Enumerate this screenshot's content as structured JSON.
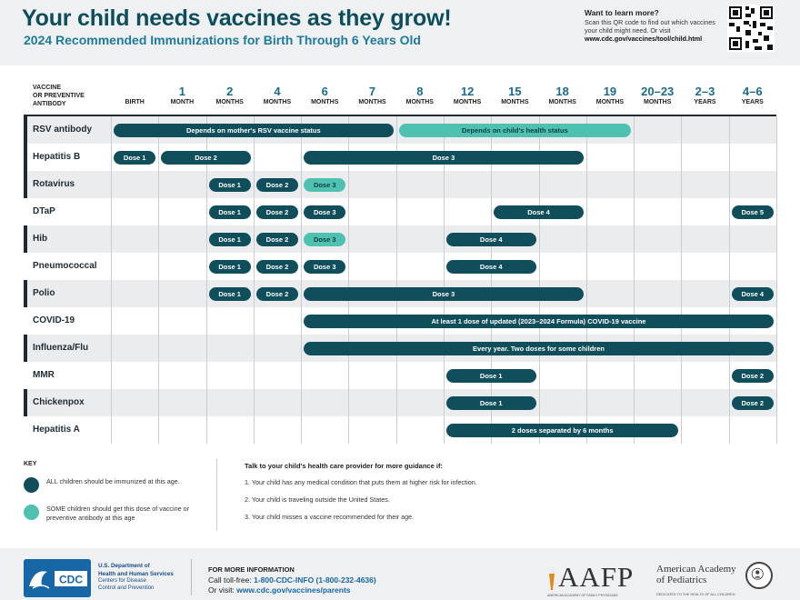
{
  "header": {
    "title": "Your child needs vaccines as they grow!",
    "subtitle": "2024 Recommended Immunizations for Birth Through 6 Years Old",
    "learn_title": "Want to learn more?",
    "learn_text": "Scan this QR code to find out which vaccines your child might need. Or visit",
    "learn_url": "www.cdc.gov/vaccines/tool/child.html"
  },
  "table": {
    "vaccine_header": [
      "VACCINE",
      "OR PREVENTIVE",
      "ANTIBODY"
    ],
    "columns": [
      {
        "num": "",
        "unit": "BIRTH"
      },
      {
        "num": "1",
        "unit": "MONTH"
      },
      {
        "num": "2",
        "unit": "MONTHS"
      },
      {
        "num": "4",
        "unit": "MONTHS"
      },
      {
        "num": "6",
        "unit": "MONTHS"
      },
      {
        "num": "7",
        "unit": "MONTHS"
      },
      {
        "num": "8",
        "unit": "MONTHS"
      },
      {
        "num": "12",
        "unit": "MONTHS"
      },
      {
        "num": "15",
        "unit": "MONTHS"
      },
      {
        "num": "18",
        "unit": "MONTHS"
      },
      {
        "num": "19",
        "unit": "MONTHS"
      },
      {
        "num": "20–23",
        "unit": "MONTHS"
      },
      {
        "num": "2–3",
        "unit": "YEARS"
      },
      {
        "num": "4–6",
        "unit": "YEARS"
      }
    ],
    "rows": [
      {
        "name": "RSV antibody",
        "mark": true,
        "bars": [
          {
            "start": 0,
            "end": 6,
            "label": "Depends on mother's RSV vaccine status",
            "type": "all"
          },
          {
            "start": 6,
            "end": 11,
            "label": "Depends on child's health status",
            "type": "some"
          }
        ]
      },
      {
        "name": "Hepatitis B",
        "mark": true,
        "bars": [
          {
            "start": 0,
            "end": 1,
            "label": "Dose 1",
            "type": "all"
          },
          {
            "start": 1,
            "end": 3,
            "label": "Dose 2",
            "type": "all"
          },
          {
            "start": 4,
            "end": 10,
            "label": "Dose 3",
            "type": "all"
          }
        ]
      },
      {
        "name": "Rotavirus",
        "mark": true,
        "bars": [
          {
            "start": 2,
            "end": 3,
            "label": "Dose 1",
            "type": "all"
          },
          {
            "start": 3,
            "end": 4,
            "label": "Dose 2",
            "type": "all"
          },
          {
            "start": 4,
            "end": 5,
            "label": "Dose 3",
            "type": "some"
          }
        ]
      },
      {
        "name": "DTaP",
        "mark": false,
        "bars": [
          {
            "start": 2,
            "end": 3,
            "label": "Dose 1",
            "type": "all"
          },
          {
            "start": 3,
            "end": 4,
            "label": "Dose 2",
            "type": "all"
          },
          {
            "start": 4,
            "end": 5,
            "label": "Dose 3",
            "type": "all"
          },
          {
            "start": 8,
            "end": 10,
            "label": "Dose 4",
            "type": "all"
          },
          {
            "start": 13,
            "end": 14,
            "label": "Dose 5",
            "type": "all"
          }
        ]
      },
      {
        "name": "Hib",
        "mark": true,
        "bars": [
          {
            "start": 2,
            "end": 3,
            "label": "Dose 1",
            "type": "all"
          },
          {
            "start": 3,
            "end": 4,
            "label": "Dose 2",
            "type": "all"
          },
          {
            "start": 4,
            "end": 5,
            "label": "Dose 3",
            "type": "some"
          },
          {
            "start": 7,
            "end": 9,
            "label": "Dose 4",
            "type": "all"
          }
        ]
      },
      {
        "name": "Pneumococcal",
        "mark": false,
        "bars": [
          {
            "start": 2,
            "end": 3,
            "label": "Dose 1",
            "type": "all"
          },
          {
            "start": 3,
            "end": 4,
            "label": "Dose 2",
            "type": "all"
          },
          {
            "start": 4,
            "end": 5,
            "label": "Dose 3",
            "type": "all"
          },
          {
            "start": 7,
            "end": 9,
            "label": "Dose 4",
            "type": "all"
          }
        ]
      },
      {
        "name": "Polio",
        "mark": true,
        "bars": [
          {
            "start": 2,
            "end": 3,
            "label": "Dose 1",
            "type": "all"
          },
          {
            "start": 3,
            "end": 4,
            "label": "Dose 2",
            "type": "all"
          },
          {
            "start": 4,
            "end": 10,
            "label": "Dose 3",
            "type": "all"
          },
          {
            "start": 13,
            "end": 14,
            "label": "Dose 4",
            "type": "all"
          }
        ]
      },
      {
        "name": "COVID-19",
        "mark": false,
        "bars": [
          {
            "start": 4,
            "end": 14,
            "label": "At least 1 dose of updated (2023–2024 Formula) COVID-19 vaccine",
            "type": "all"
          }
        ]
      },
      {
        "name": "Influenza/Flu",
        "mark": true,
        "bars": [
          {
            "start": 4,
            "end": 14,
            "label": "Every year. Two doses for some children",
            "type": "all"
          }
        ]
      },
      {
        "name": "MMR",
        "mark": false,
        "bars": [
          {
            "start": 7,
            "end": 9,
            "label": "Dose 1",
            "type": "all"
          },
          {
            "start": 13,
            "end": 14,
            "label": "Dose 2",
            "type": "all"
          }
        ]
      },
      {
        "name": "Chickenpox",
        "mark": true,
        "bars": [
          {
            "start": 7,
            "end": 9,
            "label": "Dose 1",
            "type": "all"
          },
          {
            "start": 13,
            "end": 14,
            "label": "Dose 2",
            "type": "all"
          }
        ]
      },
      {
        "name": "Hepatitis A",
        "mark": false,
        "bars": [
          {
            "start": 7,
            "end": 12,
            "label": "2 doses separated by 6 months",
            "type": "all"
          }
        ]
      }
    ]
  },
  "key": {
    "title": "KEY",
    "all_text": "ALL children should be immunized at this age.",
    "some_text": "SOME children should get this dose of vaccine or preventive antibody at this age"
  },
  "talk": {
    "title": "Talk to your child's health care provider for more guidance if:",
    "items": [
      "1. Your child has any medical condition that puts them at higher risk for infection.",
      "2. Your child is traveling outside the United States.",
      "3. Your child misses a vaccine recommended for their age."
    ]
  },
  "footer": {
    "cdc": "CDC",
    "hhs_line1": "U.S. Department of",
    "hhs_line2": "Health and Human Services",
    "hhs_line3": "Centers for Disease",
    "hhs_line4": "Control and Prevention",
    "more_title": "FOR MORE INFORMATION",
    "call_prefix": "Call toll-free: ",
    "call_number": "1-800-CDC-INFO (1-800-232-4636)",
    "visit_prefix": "Or visit: ",
    "visit_url": "www.cdc.gov/vaccines/parents",
    "aafp": "AAFP",
    "aafp_sub": "AMERICAN ACADEMY OF FAMILY PHYSICIANS",
    "aap_line1": "American Academy",
    "aap_line2": "of Pediatrics",
    "aap_sub": "DEDICATED TO THE HEALTH OF ALL CHILDREN"
  },
  "colors": {
    "all": "#104e5b",
    "some": "#4ec1b0",
    "accent": "#1b6c8c"
  }
}
